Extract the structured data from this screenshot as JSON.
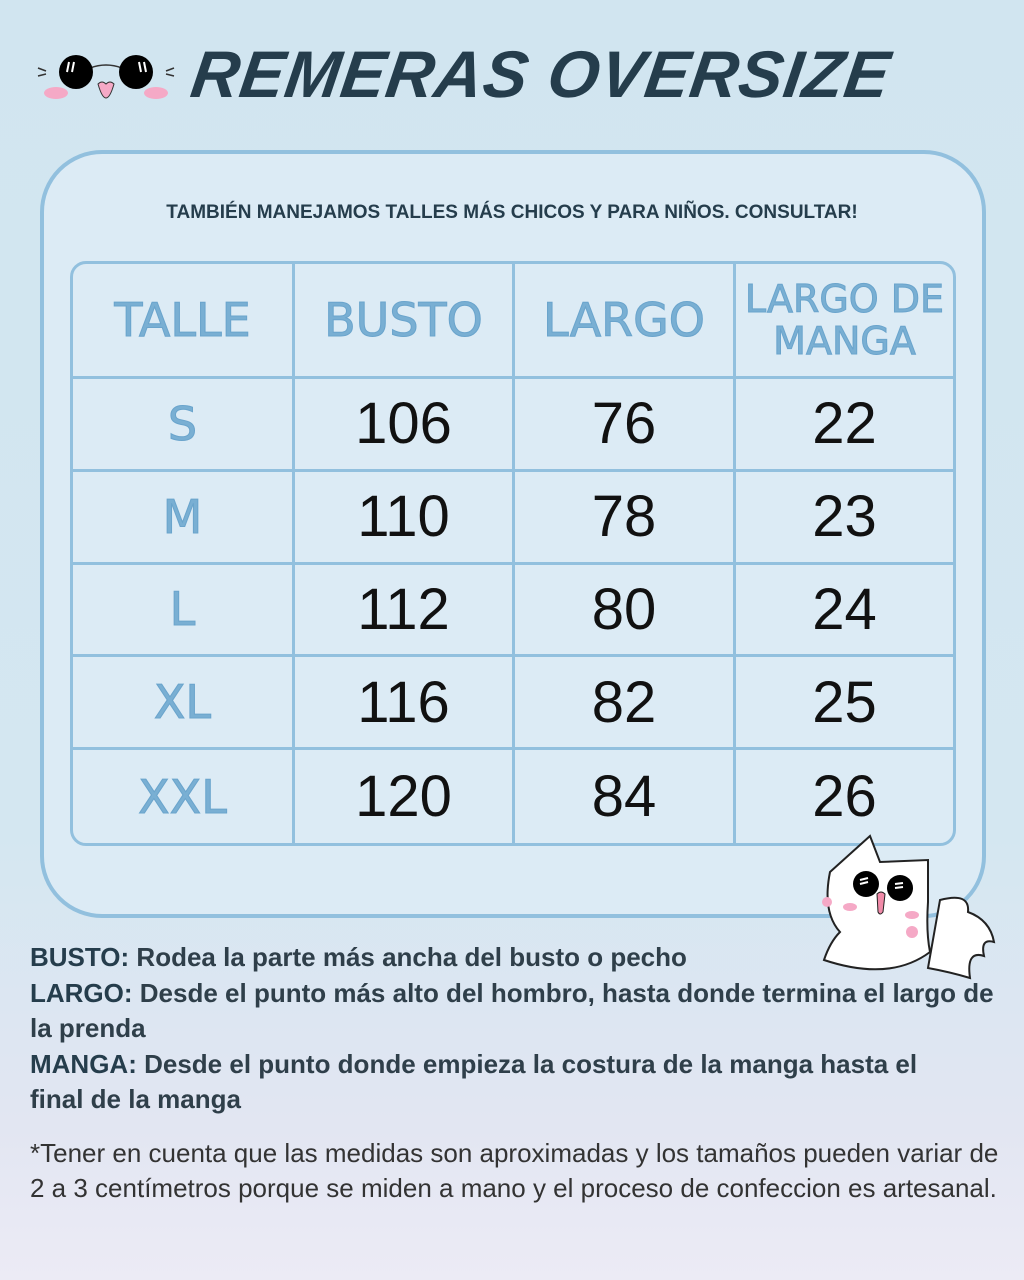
{
  "header": {
    "title": "REMERAS OVERSIZE",
    "logo_icon": "sunglasses-cat-face-icon"
  },
  "panel": {
    "subtitle": "TAMBIÉN MANEJAMOS TALLES MÁS CHICOS Y PARA NIÑOS. CONSULTAR!"
  },
  "table": {
    "headers": [
      "TALLE",
      "BUSTO",
      "LARGO",
      "LARGO DE MANGA"
    ],
    "rows": [
      [
        "S",
        "106",
        "76",
        "22"
      ],
      [
        "M",
        "110",
        "78",
        "23"
      ],
      [
        "L",
        "112",
        "80",
        "24"
      ],
      [
        "XL",
        "116",
        "82",
        "25"
      ],
      [
        "XXL",
        "120",
        "84",
        "26"
      ]
    ]
  },
  "notes": [
    {
      "term": "BUSTO:",
      "text": " Rodea la parte más ancha del busto o pecho"
    },
    {
      "term": "LARGO:",
      "text": " Desde el punto más alto del hombro, hasta donde termina el largo de la prenda"
    },
    {
      "term": "MANGA:",
      "text": " Desde el punto donde empieza la costura de la manga hasta el final de la manga"
    }
  ],
  "disclaimer": "*Tener en cuenta que las medidas son aproximadas y los tamaños pueden variar de 2 a 3 centímetros porque se miden a mano y el proceso de confeccion es artesanal.",
  "colors": {
    "title": "#253d4c",
    "border": "#92c0de",
    "header_text": "#79afd3",
    "background": "#d1e5f0"
  },
  "decoration": {
    "mascot": "white-cat-sunglasses-icon"
  }
}
